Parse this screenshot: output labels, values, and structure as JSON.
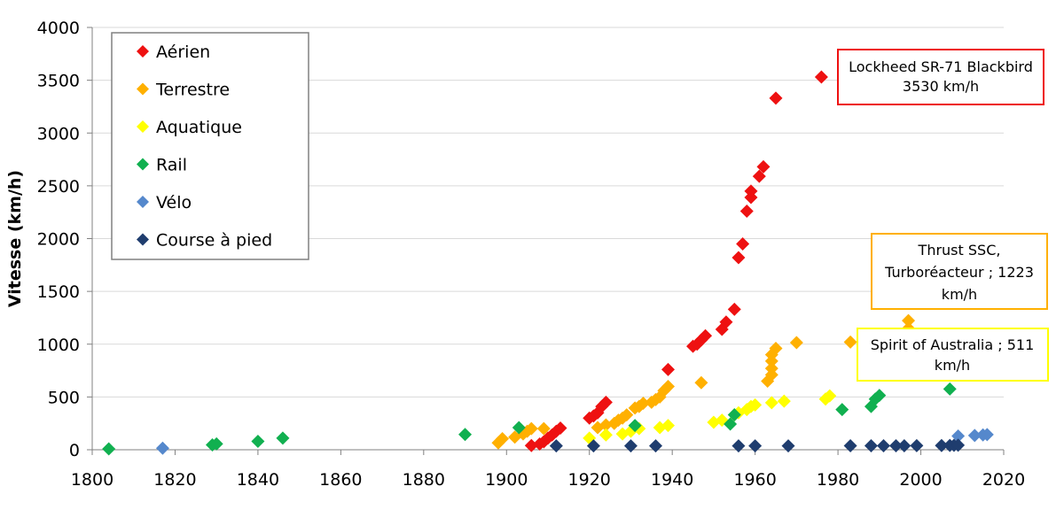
{
  "chart_data": {
    "type": "scatter",
    "ylabel": "Vitesse (km/h)",
    "xlabel": "",
    "xlim": [
      1800,
      2020
    ],
    "ylim": [
      0,
      4000
    ],
    "xticks": [
      "1800",
      "1820",
      "1840",
      "1860",
      "1880",
      "1900",
      "1920",
      "1940",
      "1960",
      "1980",
      "2000",
      "2020"
    ],
    "yticks": [
      "0",
      "500",
      "1000",
      "1500",
      "2000",
      "2500",
      "3000",
      "3500",
      "4000"
    ],
    "grid": "horizontal",
    "legend_position": "top-left",
    "series": [
      {
        "name": "Aérien",
        "color": "#ee1111",
        "points": [
          [
            1906,
            40
          ],
          [
            1908,
            55
          ],
          [
            1909,
            75
          ],
          [
            1910,
            110
          ],
          [
            1911,
            140
          ],
          [
            1912,
            175
          ],
          [
            1913,
            205
          ],
          [
            1920,
            300
          ],
          [
            1921,
            320
          ],
          [
            1922,
            350
          ],
          [
            1923,
            410
          ],
          [
            1924,
            450
          ],
          [
            1939,
            760
          ],
          [
            1945,
            980
          ],
          [
            1946,
            1000
          ],
          [
            1947,
            1040
          ],
          [
            1948,
            1080
          ],
          [
            1952,
            1140
          ],
          [
            1953,
            1210
          ],
          [
            1955,
            1330
          ],
          [
            1956,
            1820
          ],
          [
            1957,
            1950
          ],
          [
            1958,
            2260
          ],
          [
            1959,
            2390
          ],
          [
            1959,
            2450
          ],
          [
            1961,
            2590
          ],
          [
            1962,
            2680
          ],
          [
            1965,
            3330
          ],
          [
            1976,
            3530
          ]
        ]
      },
      {
        "name": "Terrestre",
        "color": "#ffb000",
        "points": [
          [
            1898,
            65
          ],
          [
            1899,
            105
          ],
          [
            1902,
            120
          ],
          [
            1904,
            150
          ],
          [
            1905,
            175
          ],
          [
            1906,
            200
          ],
          [
            1909,
            200
          ],
          [
            1922,
            210
          ],
          [
            1924,
            235
          ],
          [
            1926,
            250
          ],
          [
            1927,
            280
          ],
          [
            1928,
            300
          ],
          [
            1929,
            330
          ],
          [
            1931,
            395
          ],
          [
            1932,
            410
          ],
          [
            1933,
            440
          ],
          [
            1935,
            450
          ],
          [
            1936,
            475
          ],
          [
            1937,
            500
          ],
          [
            1938,
            560
          ],
          [
            1939,
            600
          ],
          [
            1947,
            635
          ],
          [
            1963,
            650
          ],
          [
            1964,
            710
          ],
          [
            1964,
            770
          ],
          [
            1964,
            840
          ],
          [
            1964,
            900
          ],
          [
            1965,
            960
          ],
          [
            1970,
            1015
          ],
          [
            1983,
            1020
          ],
          [
            1997,
            1150
          ],
          [
            1997,
            1223
          ]
        ]
      },
      {
        "name": "Aquatique",
        "color": "#ffff00",
        "points": [
          [
            1920,
            110
          ],
          [
            1924,
            140
          ],
          [
            1928,
            150
          ],
          [
            1930,
            175
          ],
          [
            1932,
            200
          ],
          [
            1937,
            210
          ],
          [
            1939,
            230
          ],
          [
            1950,
            260
          ],
          [
            1952,
            280
          ],
          [
            1955,
            330
          ],
          [
            1956,
            350
          ],
          [
            1958,
            380
          ],
          [
            1959,
            410
          ],
          [
            1960,
            425
          ],
          [
            1964,
            445
          ],
          [
            1967,
            460
          ],
          [
            1977,
            480
          ],
          [
            1978,
            511
          ]
        ]
      },
      {
        "name": "Rail",
        "color": "#11b050",
        "points": [
          [
            1804,
            8
          ],
          [
            1829,
            46
          ],
          [
            1830,
            56
          ],
          [
            1840,
            80
          ],
          [
            1846,
            110
          ],
          [
            1890,
            145
          ],
          [
            1903,
            210
          ],
          [
            1931,
            230
          ],
          [
            1954,
            243
          ],
          [
            1955,
            331
          ],
          [
            1981,
            380
          ],
          [
            1988,
            410
          ],
          [
            1989,
            480
          ],
          [
            1990,
            515
          ],
          [
            2007,
            575
          ]
        ]
      },
      {
        "name": "Vélo",
        "color": "#5588cc",
        "points": [
          [
            1817,
            15
          ],
          [
            2009,
            130
          ],
          [
            2013,
            135
          ],
          [
            2015,
            140
          ],
          [
            2016,
            144
          ]
        ]
      },
      {
        "name": "Course à pied",
        "color": "#1f3d6e",
        "points": [
          [
            1912,
            37
          ],
          [
            1921,
            37
          ],
          [
            1930,
            37
          ],
          [
            1936,
            37
          ],
          [
            1956,
            37
          ],
          [
            1960,
            37
          ],
          [
            1968,
            37
          ],
          [
            1983,
            38
          ],
          [
            1988,
            38
          ],
          [
            1991,
            38
          ],
          [
            1994,
            38
          ],
          [
            1996,
            38
          ],
          [
            1999,
            39
          ],
          [
            2005,
            40
          ],
          [
            2007,
            41
          ],
          [
            2008,
            42
          ],
          [
            2009,
            43
          ]
        ]
      }
    ],
    "annotations": [
      {
        "lines": [
          "Lockheed SR-71 Blackbird",
          "3530 km/h"
        ],
        "border_color": "#ee1111"
      },
      {
        "lines": [
          "Thrust SSC,",
          "Turboréacteur ; 1223",
          "km/h"
        ],
        "border_color": "#ffb000"
      },
      {
        "lines": [
          "Spirit of Australia ; 511",
          "km/h"
        ],
        "border_color": "#ffff00"
      }
    ]
  }
}
